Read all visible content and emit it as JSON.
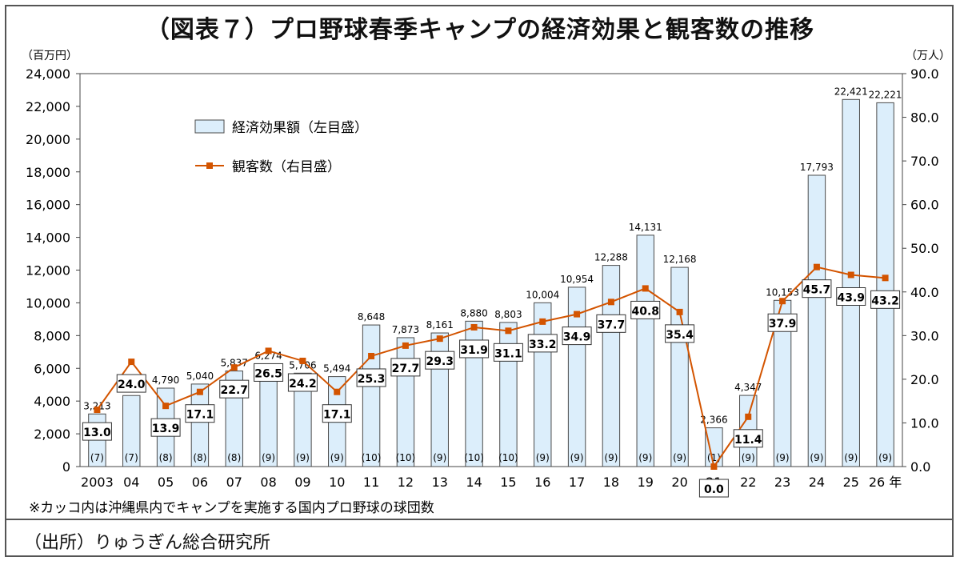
{
  "title": "（図表７）プロ野球春季キャンプの経済効果と観客数の推移",
  "source": "（出所）りゅうぎん総合研究所",
  "note": "※カッコ内は沖縄県内でキャンプを実施する国内プロ野球の球団数",
  "colors": {
    "bar_fill": "#dceefb",
    "bar_stroke": "#4a4a4a",
    "line": "#d35400",
    "marker": "#d35400"
  },
  "chart_data": {
    "type": "bar",
    "title": "（図表７）プロ野球春季キャンプの経済効果と観客数の推移",
    "categories": [
      "2003",
      "04",
      "05",
      "06",
      "07",
      "08",
      "09",
      "10",
      "11",
      "12",
      "13",
      "14",
      "15",
      "16",
      "17",
      "18",
      "19",
      "20",
      "21",
      "22",
      "23",
      "24",
      "25",
      "26 年"
    ],
    "left_axis_unit": "（百万円）",
    "right_axis_unit": "（万人）",
    "left_ylim": [
      0,
      24000
    ],
    "right_ylim": [
      0,
      90
    ],
    "left_ticks": [
      "24,000",
      "22,000",
      "20,000",
      "18,000",
      "16,000",
      "14,000",
      "12,000",
      "10,000",
      "8,000",
      "6,000",
      "4,000",
      "2,000",
      "0"
    ],
    "right_ticks": [
      "90.0",
      "80.0",
      "70.0",
      "60.0",
      "50.0",
      "40.0",
      "30.0",
      "20.0",
      "10.0",
      "0.0"
    ],
    "series": [
      {
        "name": "経済効果額（左目盛）",
        "type": "bar",
        "values": [
          3213,
          4338,
          4790,
          5040,
          5837,
          6274,
          5706,
          5494,
          8648,
          7873,
          8161,
          8880,
          8803,
          10004,
          10954,
          12288,
          14131,
          12168,
          2366,
          4347,
          10153,
          17793,
          22421,
          22221
        ],
        "labels": [
          "3,213",
          "4,338",
          "4,790",
          "5,040",
          "5,837",
          "6,274",
          "5,706",
          "5,494",
          "8,648",
          "7,873",
          "8,161",
          "8,880",
          "8,803",
          "10,004",
          "10,954",
          "12,288",
          "14,131",
          "12,168",
          "2,366",
          "4,347",
          "10,153",
          "17,793",
          "22,421",
          "22,221"
        ]
      },
      {
        "name": "観客数（右目盛）",
        "type": "line",
        "values": [
          13.0,
          24.0,
          13.9,
          17.1,
          22.7,
          26.5,
          24.2,
          17.1,
          25.3,
          27.7,
          29.3,
          31.9,
          31.1,
          33.2,
          34.9,
          37.7,
          40.8,
          35.4,
          0.0,
          11.4,
          37.9,
          45.7,
          43.9,
          43.2
        ],
        "labels": [
          "13.0",
          "24.0",
          "13.9",
          "17.1",
          "22.7",
          "26.5",
          "24.2",
          "17.1",
          "25.3",
          "27.7",
          "29.3",
          "31.9",
          "31.1",
          "33.2",
          "34.9",
          "37.7",
          "40.8",
          "35.4",
          "0.0",
          "11.4",
          "37.9",
          "45.7",
          "43.9",
          "43.2"
        ]
      }
    ],
    "team_counts": [
      "(7)",
      "(7)",
      "(8)",
      "(8)",
      "(8)",
      "(9)",
      "(9)",
      "(9)",
      "(10)",
      "(10)",
      "(9)",
      "(10)",
      "(10)",
      "(9)",
      "(9)",
      "(9)",
      "(9)",
      "(9)",
      "(1)",
      "(9)",
      "(9)",
      "(9)",
      "(9)",
      "(9)"
    ],
    "legend_position": "top-left"
  }
}
